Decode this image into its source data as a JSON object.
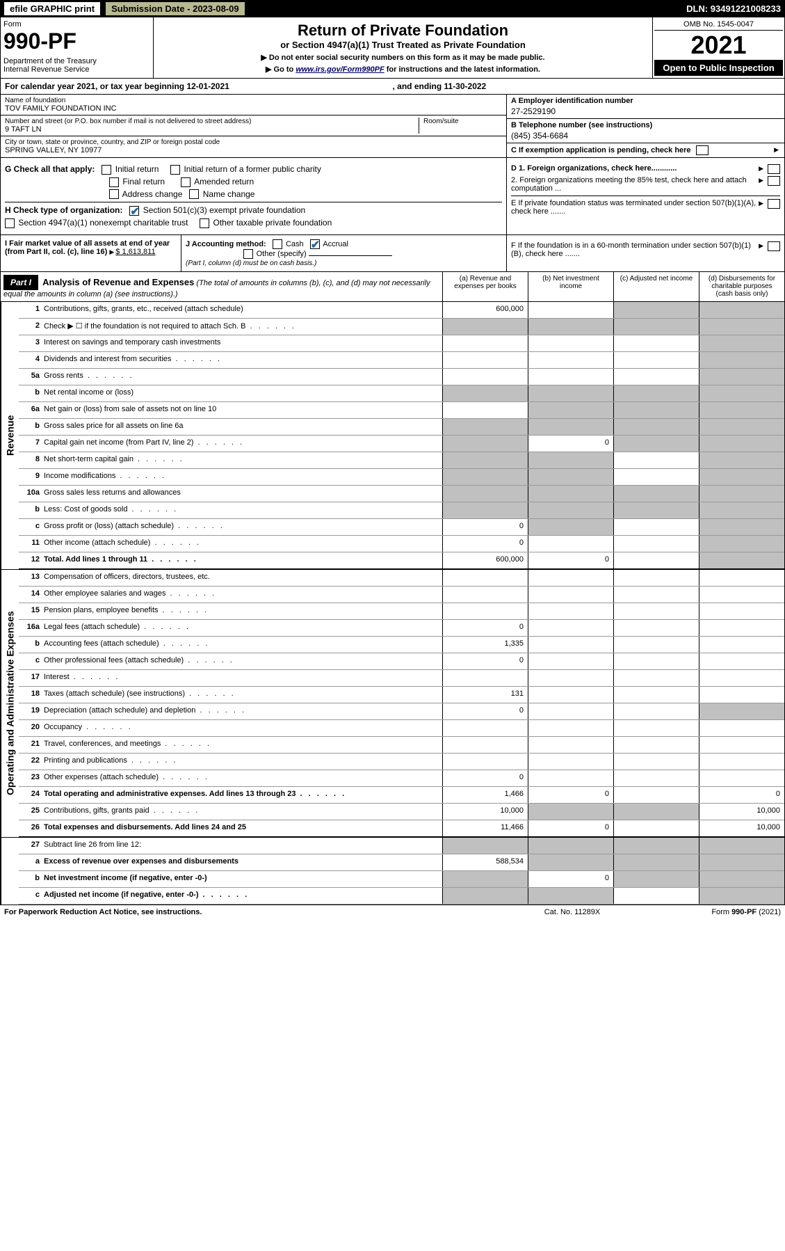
{
  "topbar": {
    "efile": "efile GRAPHIC print",
    "submission": "Submission Date - 2023-08-09",
    "dln": "DLN: 93491221008233"
  },
  "header": {
    "form": "Form",
    "number": "990-PF",
    "dept": "Department of the Treasury\nInternal Revenue Service",
    "title": "Return of Private Foundation",
    "subtitle": "or Section 4947(a)(1) Trust Treated as Private Foundation",
    "note1": "▶ Do not enter social security numbers on this form as it may be made public.",
    "note2_pre": "▶ Go to ",
    "note2_link": "www.irs.gov/Form990PF",
    "note2_post": " for instructions and the latest information.",
    "omb": "OMB No. 1545-0047",
    "year": "2021",
    "open": "Open to Public Inspection"
  },
  "cal": {
    "label": "For calendar year 2021, or tax year beginning 12-01-2021",
    "end": ", and ending 11-30-2022"
  },
  "entity": {
    "name_lbl": "Name of foundation",
    "name": "TOV FAMILY FOUNDATION INC",
    "addr_lbl": "Number and street (or P.O. box number if mail is not delivered to street address)",
    "addr": "9 TAFT LN",
    "room_lbl": "Room/suite",
    "city_lbl": "City or town, state or province, country, and ZIP or foreign postal code",
    "city": "SPRING VALLEY, NY  10977",
    "a_lbl": "A Employer identification number",
    "ein": "27-2529190",
    "b_lbl": "B Telephone number (see instructions)",
    "phone": "(845) 354-6684",
    "c_lbl": "C If exemption application is pending, check here"
  },
  "g": {
    "label": "G Check all that apply:",
    "opts": [
      "Initial return",
      "Final return",
      "Address change",
      "Initial return of a former public charity",
      "Amended return",
      "Name change"
    ]
  },
  "h": {
    "label": "H Check type of organization:",
    "opt1": "Section 501(c)(3) exempt private foundation",
    "opt2": "Section 4947(a)(1) nonexempt charitable trust",
    "opt3": "Other taxable private foundation"
  },
  "d": {
    "d1": "D 1. Foreign organizations, check here............",
    "d2": "2. Foreign organizations meeting the 85% test, check here and attach computation ..."
  },
  "e": "E  If private foundation status was terminated under section 507(b)(1)(A), check here .......",
  "i": {
    "label": "I Fair market value of all assets at end of year (from Part II, col. (c), line 16)",
    "val": "$  1,613,811"
  },
  "j": {
    "label": "J Accounting method:",
    "cash": "Cash",
    "accrual": "Accrual",
    "other": "Other (specify)",
    "note": "(Part I, column (d) must be on cash basis.)"
  },
  "f": "F  If the foundation is in a 60-month termination under section 507(b)(1)(B), check here .......",
  "part1": {
    "tag": "Part I",
    "title": "Analysis of Revenue and Expenses",
    "note": "(The total of amounts in columns (b), (c), and (d) may not necessarily equal the amounts in column (a) (see instructions).)",
    "col_a": "(a)  Revenue and expenses per books",
    "col_b": "(b)  Net investment income",
    "col_c": "(c)  Adjusted net income",
    "col_d": "(d)  Disbursements for charitable purposes (cash basis only)",
    "sidelabels": {
      "rev": "Revenue",
      "exp": "Operating and Administrative Expenses"
    }
  },
  "rows": {
    "r1": {
      "ln": "1",
      "txt": "Contributions, gifts, grants, etc., received (attach schedule)",
      "a": "600,000"
    },
    "r2": {
      "ln": "2",
      "txt": "Check ▶ ☐ if the foundation is not required to attach Sch. B"
    },
    "r3": {
      "ln": "3",
      "txt": "Interest on savings and temporary cash investments"
    },
    "r4": {
      "ln": "4",
      "txt": "Dividends and interest from securities"
    },
    "r5a": {
      "ln": "5a",
      "txt": "Gross rents"
    },
    "r5b": {
      "ln": "b",
      "txt": "Net rental income or (loss)"
    },
    "r6a": {
      "ln": "6a",
      "txt": "Net gain or (loss) from sale of assets not on line 10"
    },
    "r6b": {
      "ln": "b",
      "txt": "Gross sales price for all assets on line 6a"
    },
    "r7": {
      "ln": "7",
      "txt": "Capital gain net income (from Part IV, line 2)",
      "b": "0"
    },
    "r8": {
      "ln": "8",
      "txt": "Net short-term capital gain"
    },
    "r9": {
      "ln": "9",
      "txt": "Income modifications"
    },
    "r10a": {
      "ln": "10a",
      "txt": "Gross sales less returns and allowances"
    },
    "r10b": {
      "ln": "b",
      "txt": "Less: Cost of goods sold"
    },
    "r10c": {
      "ln": "c",
      "txt": "Gross profit or (loss) (attach schedule)",
      "a": "0"
    },
    "r11": {
      "ln": "11",
      "txt": "Other income (attach schedule)",
      "a": "0"
    },
    "r12": {
      "ln": "12",
      "txt": "Total. Add lines 1 through 11",
      "a": "600,000",
      "b": "0"
    },
    "r13": {
      "ln": "13",
      "txt": "Compensation of officers, directors, trustees, etc."
    },
    "r14": {
      "ln": "14",
      "txt": "Other employee salaries and wages"
    },
    "r15": {
      "ln": "15",
      "txt": "Pension plans, employee benefits"
    },
    "r16a": {
      "ln": "16a",
      "txt": "Legal fees (attach schedule)",
      "a": "0"
    },
    "r16b": {
      "ln": "b",
      "txt": "Accounting fees (attach schedule)",
      "a": "1,335"
    },
    "r16c": {
      "ln": "c",
      "txt": "Other professional fees (attach schedule)",
      "a": "0"
    },
    "r17": {
      "ln": "17",
      "txt": "Interest"
    },
    "r18": {
      "ln": "18",
      "txt": "Taxes (attach schedule) (see instructions)",
      "a": "131"
    },
    "r19": {
      "ln": "19",
      "txt": "Depreciation (attach schedule) and depletion",
      "a": "0"
    },
    "r20": {
      "ln": "20",
      "txt": "Occupancy"
    },
    "r21": {
      "ln": "21",
      "txt": "Travel, conferences, and meetings"
    },
    "r22": {
      "ln": "22",
      "txt": "Printing and publications"
    },
    "r23": {
      "ln": "23",
      "txt": "Other expenses (attach schedule)",
      "a": "0"
    },
    "r24": {
      "ln": "24",
      "txt": "Total operating and administrative expenses. Add lines 13 through 23",
      "a": "1,466",
      "b": "0",
      "d": "0"
    },
    "r25": {
      "ln": "25",
      "txt": "Contributions, gifts, grants paid",
      "a": "10,000",
      "d": "10,000"
    },
    "r26": {
      "ln": "26",
      "txt": "Total expenses and disbursements. Add lines 24 and 25",
      "a": "11,466",
      "b": "0",
      "d": "10,000"
    },
    "r27": {
      "ln": "27",
      "txt": "Subtract line 26 from line 12:"
    },
    "r27a": {
      "ln": "a",
      "txt": "Excess of revenue over expenses and disbursements",
      "a": "588,534"
    },
    "r27b": {
      "ln": "b",
      "txt": "Net investment income (if negative, enter -0-)",
      "b": "0"
    },
    "r27c": {
      "ln": "c",
      "txt": "Adjusted net income (if negative, enter -0-)"
    }
  },
  "footer": {
    "left": "For Paperwork Reduction Act Notice, see instructions.",
    "mid": "Cat. No. 11289X",
    "right": "Form 990-PF (2021)"
  }
}
